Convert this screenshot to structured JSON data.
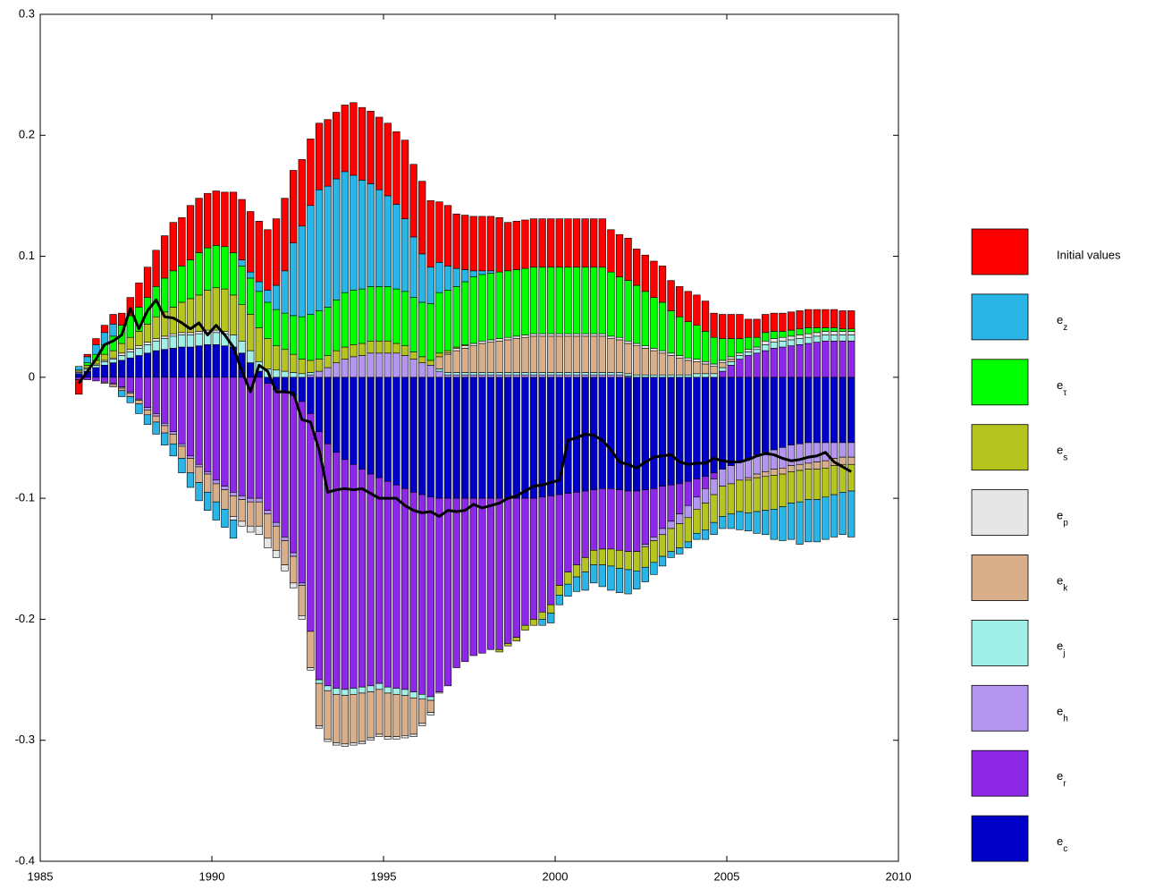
{
  "chart_data": {
    "type": "stacked_bar",
    "legend": "right",
    "xlim": [
      1985,
      2010
    ],
    "xticks": [
      1985,
      1990,
      1995,
      2000,
      2005,
      2010
    ],
    "ylim": [
      -0.4,
      0.3
    ],
    "yticks": [
      -0.4,
      -0.3,
      -0.2,
      -0.1,
      0,
      0.1,
      0.2,
      0.3
    ],
    "x": [
      1986.125,
      1986.375,
      1986.625,
      1986.875,
      1987.125,
      1987.375,
      1987.625,
      1987.875,
      1988.125,
      1988.375,
      1988.625,
      1988.875,
      1989.125,
      1989.375,
      1989.625,
      1989.875,
      1990.125,
      1990.375,
      1990.625,
      1990.875,
      1991.125,
      1991.375,
      1991.625,
      1991.875,
      1992.125,
      1992.375,
      1992.625,
      1992.875,
      1993.125,
      1993.375,
      1993.625,
      1993.875,
      1994.125,
      1994.375,
      1994.625,
      1994.875,
      1995.125,
      1995.375,
      1995.625,
      1995.875,
      1996.125,
      1996.375,
      1996.625,
      1996.875,
      1997.125,
      1997.375,
      1997.625,
      1997.875,
      1998.125,
      1998.375,
      1998.625,
      1998.875,
      1999.125,
      1999.375,
      1999.625,
      1999.875,
      2000.125,
      2000.375,
      2000.625,
      2000.875,
      2001.125,
      2001.375,
      2001.625,
      2001.875,
      2002.125,
      2002.375,
      2002.625,
      2002.875,
      2003.125,
      2003.375,
      2003.625,
      2003.875,
      2004.125,
      2004.375,
      2004.625,
      2004.875,
      2005.125,
      2005.375,
      2005.625,
      2005.875,
      2006.125,
      2006.375,
      2006.625,
      2006.875,
      2007.125,
      2007.375,
      2007.625,
      2007.875,
      2008.125,
      2008.375,
      2008.625
    ],
    "series": [
      {
        "name": "Initial values",
        "color": "#ff0000",
        "values": [
          -0.012,
          0.002,
          0.005,
          0.006,
          0.008,
          0.01,
          0.015,
          0.02,
          0.025,
          0.03,
          0.035,
          0.04,
          0.04,
          0.045,
          0.045,
          0.045,
          0.045,
          0.045,
          0.05,
          0.05,
          0.05,
          0.05,
          0.05,
          0.055,
          0.06,
          0.06,
          0.055,
          0.055,
          0.055,
          0.055,
          0.055,
          0.055,
          0.06,
          0.06,
          0.06,
          0.06,
          0.06,
          0.06,
          0.065,
          0.06,
          0.06,
          0.055,
          0.05,
          0.05,
          0.045,
          0.045,
          0.045,
          0.045,
          0.045,
          0.045,
          0.04,
          0.04,
          0.04,
          0.04,
          0.04,
          0.04,
          0.04,
          0.04,
          0.04,
          0.04,
          0.04,
          0.04,
          0.035,
          0.035,
          0.035,
          0.03,
          0.03,
          0.03,
          0.03,
          0.025,
          0.025,
          0.025,
          0.025,
          0.025,
          0.02,
          0.02,
          0.02,
          0.02,
          0.015,
          0.015,
          0.015,
          0.015,
          0.015,
          0.015,
          0.015,
          0.015,
          0.015,
          0.015,
          0.015,
          0.015,
          0.015
        ]
      },
      {
        "name": "ez",
        "color": "#29b6e6",
        "values": [
          0.003,
          0.005,
          0.008,
          0.01,
          0.01,
          -0.005,
          -0.005,
          -0.008,
          -0.008,
          -0.01,
          -0.01,
          -0.01,
          -0.012,
          -0.012,
          -0.015,
          -0.015,
          -0.015,
          -0.015,
          -0.015,
          0.005,
          0.005,
          0.008,
          0.01,
          0.02,
          0.035,
          0.06,
          0.075,
          0.09,
          0.1,
          0.1,
          0.1,
          0.1,
          0.095,
          0.09,
          0.085,
          0.08,
          0.075,
          0.07,
          0.06,
          0.05,
          0.04,
          0.03,
          0.025,
          0.02,
          0.015,
          0.01,
          0.005,
          0.003,
          0.002,
          0,
          0,
          0,
          0,
          0,
          -0.005,
          -0.008,
          -0.008,
          -0.01,
          -0.012,
          -0.015,
          -0.015,
          -0.018,
          -0.02,
          -0.02,
          -0.02,
          -0.015,
          -0.012,
          -0.01,
          -0.008,
          -0.005,
          -0.005,
          -0.005,
          -0.005,
          -0.008,
          -0.01,
          -0.01,
          -0.012,
          -0.015,
          -0.015,
          -0.018,
          -0.02,
          -0.025,
          -0.028,
          -0.03,
          -0.035,
          -0.035,
          -0.035,
          -0.035,
          -0.035,
          -0.035,
          -0.038
        ]
      },
      {
        "name": "eτ",
        "color": "#00ff00",
        "values": [
          0,
          0.002,
          0.005,
          0.008,
          0.012,
          0.015,
          0.018,
          0.02,
          0.022,
          0.025,
          0.028,
          0.03,
          0.03,
          0.032,
          0.035,
          0.035,
          0.035,
          0.035,
          0.035,
          0.032,
          0.03,
          0.03,
          0.03,
          0.03,
          0.03,
          0.032,
          0.035,
          0.038,
          0.04,
          0.04,
          0.042,
          0.045,
          0.045,
          0.045,
          0.045,
          0.045,
          0.045,
          0.045,
          0.045,
          0.045,
          0.045,
          0.047,
          0.05,
          0.05,
          0.05,
          0.052,
          0.055,
          0.055,
          0.055,
          0.055,
          0.055,
          0.055,
          0.055,
          0.055,
          0.055,
          0.055,
          0.055,
          0.055,
          0.055,
          0.055,
          0.055,
          0.055,
          0.053,
          0.05,
          0.05,
          0.048,
          0.045,
          0.042,
          0.04,
          0.035,
          0.032,
          0.03,
          0.028,
          0.025,
          0.022,
          0.018,
          0.015,
          0.012,
          0.01,
          0.008,
          0.007,
          0.006,
          0.005,
          0.005,
          0.005,
          0.005,
          0.004,
          0.003,
          0.003,
          0.002,
          0.002
        ]
      },
      {
        "name": "es",
        "color": "#b5c41e",
        "values": [
          0.001,
          0.002,
          0.003,
          0.005,
          0.006,
          0.008,
          0.01,
          0.012,
          0.015,
          0.018,
          0.02,
          0.022,
          0.025,
          0.028,
          0.03,
          0.033,
          0.035,
          0.035,
          0.033,
          0.03,
          0.03,
          0.028,
          0.025,
          0.02,
          0.018,
          0.015,
          0.012,
          0.01,
          0.01,
          0.01,
          0.01,
          0.01,
          0.01,
          0.01,
          0.01,
          0.01,
          0.01,
          0.008,
          0.008,
          0.006,
          0.005,
          0.004,
          0.003,
          0.002,
          0.001,
          0.001,
          0,
          0,
          0,
          -0.002,
          -0.002,
          -0.003,
          -0.004,
          -0.005,
          -0.006,
          -0.007,
          -0.008,
          -0.01,
          -0.01,
          -0.012,
          -0.012,
          -0.013,
          -0.014,
          -0.015,
          -0.015,
          -0.016,
          -0.017,
          -0.018,
          -0.018,
          -0.019,
          -0.02,
          -0.02,
          -0.02,
          -0.022,
          -0.023,
          -0.025,
          -0.025,
          -0.026,
          -0.027,
          -0.028,
          -0.028,
          -0.028,
          -0.027,
          -0.026,
          -0.026,
          -0.025,
          -0.025,
          -0.024,
          -0.024,
          -0.023,
          -0.022
        ]
      },
      {
        "name": "ep",
        "color": "#e6e6e6",
        "values": [
          0.001,
          0.001,
          0.001,
          0.001,
          0.001,
          0.002,
          0.002,
          0.002,
          0.002,
          0.002,
          0.002,
          0.002,
          0.002,
          0.002,
          0.002,
          0.002,
          0.002,
          0.002,
          -0.003,
          -0.004,
          -0.005,
          -0.007,
          -0.008,
          -0.006,
          -0.005,
          -0.004,
          -0.003,
          -0.002,
          -0.002,
          -0.002,
          -0.002,
          -0.002,
          -0.002,
          -0.002,
          -0.002,
          -0.002,
          -0.002,
          -0.002,
          -0.002,
          -0.002,
          -0.002,
          -0.002,
          -0.001,
          0.001,
          0.002,
          0.002,
          0.002,
          0.002,
          0.002,
          0.002,
          0.002,
          0.002,
          0.002,
          0.002,
          0.002,
          0.002,
          0.002,
          0.002,
          0.002,
          0.002,
          0.002,
          0.002,
          0.002,
          0.002,
          0.002,
          0.002,
          0.002,
          0.002,
          0.002,
          0.002,
          0.002,
          0.002,
          0.002,
          0.002,
          0.002,
          0.002,
          0.002,
          0.002,
          0.002,
          0.002,
          0.003,
          0.003,
          0.003,
          0.003,
          0.003,
          0.003,
          0.003,
          0.003,
          0.003,
          0.003,
          0.003
        ]
      },
      {
        "name": "ek",
        "color": "#d9ae8a",
        "values": [
          0,
          0,
          0,
          -0.001,
          -0.002,
          -0.002,
          -0.003,
          -0.003,
          -0.004,
          -0.005,
          -0.006,
          -0.008,
          -0.01,
          -0.012,
          -0.013,
          -0.015,
          -0.015,
          -0.016,
          -0.017,
          -0.018,
          -0.02,
          -0.02,
          -0.02,
          -0.02,
          -0.02,
          -0.022,
          -0.025,
          -0.03,
          -0.035,
          -0.04,
          -0.04,
          -0.04,
          -0.04,
          -0.04,
          -0.038,
          -0.037,
          -0.036,
          -0.035,
          -0.033,
          -0.03,
          -0.02,
          -0.01,
          0.01,
          0.015,
          0.018,
          0.02,
          0.022,
          0.024,
          0.025,
          0.026,
          0.027,
          0.028,
          0.029,
          0.03,
          0.03,
          0.03,
          0.03,
          0.03,
          0.03,
          0.03,
          0.03,
          0.03,
          0.028,
          0.027,
          0.025,
          0.024,
          0.022,
          0.02,
          0.018,
          0.016,
          0.014,
          0.012,
          0.01,
          0.008,
          0.006,
          0.004,
          0.002,
          0,
          -0.002,
          -0.003,
          -0.004,
          -0.005,
          -0.005,
          -0.005,
          -0.005,
          -0.005,
          -0.006,
          -0.006,
          -0.006,
          -0.006,
          -0.006
        ]
      },
      {
        "name": "ej",
        "color": "#a0f0e8",
        "values": [
          0.001,
          0.002,
          0.002,
          0.003,
          0.003,
          0.004,
          0.005,
          0.006,
          0.007,
          0.008,
          0.009,
          0.01,
          0.01,
          0.01,
          0.01,
          0.01,
          0.01,
          0.01,
          0.01,
          0.01,
          0.01,
          0.008,
          0.007,
          0.006,
          0.005,
          0.004,
          0.003,
          0.002,
          -0.003,
          -0.004,
          -0.005,
          -0.005,
          -0.005,
          -0.005,
          -0.005,
          -0.005,
          -0.005,
          -0.005,
          -0.005,
          -0.005,
          -0.004,
          -0.003,
          0.002,
          0.002,
          0.002,
          0.002,
          0.002,
          0.002,
          0.002,
          0.002,
          0.002,
          0.002,
          0.002,
          0.002,
          0.002,
          0.002,
          0.002,
          0.002,
          0.002,
          0.002,
          0.002,
          0.002,
          0.002,
          0.002,
          0.002,
          0.002,
          0.002,
          0.002,
          0.002,
          0.002,
          0.002,
          0.002,
          0.003,
          0.003,
          0.003,
          0.003,
          0.003,
          0.003,
          0.003,
          0.003,
          0.005,
          0.005,
          0.005,
          0.005,
          0.005,
          0.005,
          0.005,
          0.005,
          0.005,
          0.005,
          0.005
        ]
      },
      {
        "name": "eh",
        "color": "#b496f0",
        "values": [
          0,
          0,
          0,
          0,
          -0.001,
          -0.001,
          -0.001,
          -0.001,
          -0.002,
          -0.002,
          -0.002,
          -0.002,
          -0.002,
          -0.002,
          -0.002,
          -0.002,
          -0.003,
          -0.003,
          -0.003,
          -0.003,
          -0.003,
          -0.003,
          -0.003,
          -0.003,
          -0.003,
          -0.003,
          -0.002,
          0.002,
          0.005,
          0.008,
          0.012,
          0.015,
          0.017,
          0.018,
          0.02,
          0.02,
          0.02,
          0.02,
          0.018,
          0.015,
          0.012,
          0.01,
          0.005,
          0.002,
          0.002,
          0.002,
          0.002,
          0.002,
          0.002,
          0.002,
          0.002,
          0.002,
          0.002,
          0.002,
          0.002,
          0.002,
          0.002,
          0.002,
          0.002,
          0.002,
          0.002,
          0.002,
          0.002,
          0.002,
          0.001,
          0,
          -0.002,
          -0.003,
          -0.005,
          -0.006,
          -0.008,
          -0.01,
          -0.01,
          -0.012,
          -0.013,
          -0.014,
          -0.015,
          -0.015,
          -0.016,
          -0.016,
          -0.016,
          -0.016,
          -0.017,
          -0.017,
          -0.017,
          -0.017,
          -0.016,
          -0.015,
          -0.013,
          -0.012,
          -0.012
        ]
      },
      {
        "name": "er",
        "color": "#8c28e6",
        "values": [
          -0.002,
          -0.002,
          -0.003,
          -0.004,
          -0.005,
          -0.008,
          -0.012,
          -0.018,
          -0.025,
          -0.03,
          -0.038,
          -0.045,
          -0.055,
          -0.065,
          -0.072,
          -0.078,
          -0.085,
          -0.09,
          -0.095,
          -0.098,
          -0.1,
          -0.1,
          -0.105,
          -0.11,
          -0.12,
          -0.13,
          -0.15,
          -0.18,
          -0.205,
          -0.2,
          -0.195,
          -0.19,
          -0.185,
          -0.18,
          -0.175,
          -0.17,
          -0.17,
          -0.168,
          -0.166,
          -0.165,
          -0.165,
          -0.165,
          -0.16,
          -0.155,
          -0.14,
          -0.135,
          -0.13,
          -0.128,
          -0.125,
          -0.125,
          -0.12,
          -0.115,
          -0.105,
          -0.1,
          -0.095,
          -0.09,
          -0.075,
          -0.065,
          -0.06,
          -0.055,
          -0.05,
          -0.05,
          -0.05,
          -0.05,
          -0.05,
          -0.05,
          -0.045,
          -0.04,
          -0.035,
          -0.03,
          -0.025,
          -0.02,
          -0.015,
          -0.01,
          -0.005,
          0.005,
          0.01,
          0.015,
          0.018,
          0.02,
          0.022,
          0.024,
          0.025,
          0.026,
          0.027,
          0.028,
          0.029,
          0.03,
          0.03,
          0.03,
          0.03
        ]
      },
      {
        "name": "ec",
        "color": "#0000c8",
        "values": [
          0.003,
          0.005,
          0.008,
          0.01,
          0.012,
          0.014,
          0.016,
          0.018,
          0.02,
          0.022,
          0.023,
          0.024,
          0.025,
          0.025,
          0.026,
          0.027,
          0.027,
          0.026,
          0.025,
          0.02,
          0.012,
          0.005,
          -0.005,
          -0.01,
          -0.012,
          -0.015,
          -0.02,
          -0.03,
          -0.045,
          -0.055,
          -0.062,
          -0.068,
          -0.072,
          -0.076,
          -0.08,
          -0.083,
          -0.086,
          -0.089,
          -0.092,
          -0.095,
          -0.097,
          -0.099,
          -0.1,
          -0.1,
          -0.1,
          -0.1,
          -0.1,
          -0.1,
          -0.1,
          -0.1,
          -0.1,
          -0.1,
          -0.1,
          -0.1,
          -0.099,
          -0.098,
          -0.097,
          -0.096,
          -0.095,
          -0.094,
          -0.093,
          -0.092,
          -0.092,
          -0.093,
          -0.094,
          -0.094,
          -0.093,
          -0.092,
          -0.09,
          -0.089,
          -0.088,
          -0.086,
          -0.084,
          -0.082,
          -0.079,
          -0.076,
          -0.073,
          -0.07,
          -0.067,
          -0.064,
          -0.062,
          -0.06,
          -0.058,
          -0.056,
          -0.055,
          -0.054,
          -0.054,
          -0.054,
          -0.054,
          -0.054,
          -0.054
        ]
      }
    ],
    "line": {
      "color": "#000000",
      "values": [
        -0.005,
        0.005,
        0.015,
        0.027,
        0.03,
        0.035,
        0.057,
        0.04,
        0.055,
        0.064,
        0.05,
        0.049,
        0.045,
        0.04,
        0.045,
        0.035,
        0.043,
        0.035,
        0.025,
        0.005,
        -0.012,
        0.01,
        0.005,
        -0.012,
        -0.012,
        -0.013,
        -0.035,
        -0.037,
        -0.06,
        -0.095,
        -0.093,
        -0.092,
        -0.093,
        -0.092,
        -0.096,
        -0.1,
        -0.1,
        -0.1,
        -0.106,
        -0.11,
        -0.112,
        -0.111,
        -0.115,
        -0.11,
        -0.111,
        -0.11,
        -0.105,
        -0.108,
        -0.106,
        -0.104,
        -0.1,
        -0.098,
        -0.094,
        -0.09,
        -0.089,
        -0.087,
        -0.085,
        -0.052,
        -0.05,
        -0.047,
        -0.048,
        -0.052,
        -0.06,
        -0.07,
        -0.072,
        -0.075,
        -0.07,
        -0.066,
        -0.065,
        -0.064,
        -0.07,
        -0.072,
        -0.071,
        -0.071,
        -0.067,
        -0.069,
        -0.07,
        -0.07,
        -0.068,
        -0.065,
        -0.063,
        -0.064,
        -0.067,
        -0.069,
        -0.068,
        -0.066,
        -0.065,
        -0.062,
        -0.07,
        -0.074,
        -0.078
      ]
    }
  }
}
